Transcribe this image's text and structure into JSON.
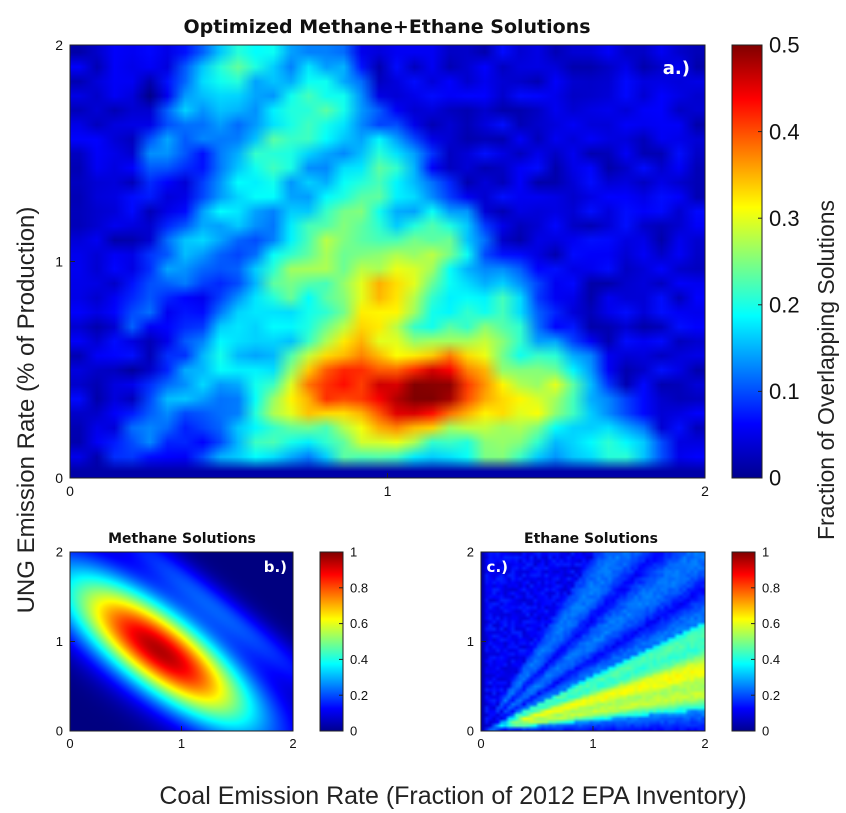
{
  "figure": {
    "shared_ylabel": "UNG Emission Rate (% of Production)",
    "shared_xlabel": "Coal Emission Rate (Fraction of 2012 EPA Inventory)",
    "colorbar_label": "Fraction of Overlapping Solutions",
    "colormap": "jet"
  },
  "chart_data": [
    {
      "type": "heatmap",
      "panel": "a.)",
      "title": "Optimized Methane+Ethane Solutions",
      "xlim": [
        0,
        2
      ],
      "ylim": [
        0,
        2
      ],
      "xticks": [
        "0",
        "1",
        "2"
      ],
      "yticks": [
        "0",
        "1",
        "2"
      ],
      "colorbar": {
        "range": [
          0,
          0.5
        ],
        "ticks": [
          "0",
          "0.1",
          "0.2",
          "0.3",
          "0.4",
          "0.5"
        ]
      },
      "features": {
        "peak_value": 0.45,
        "peak_location": {
          "coal": 1.0,
          "ung": 0.4
        },
        "nonzero_region": "triangle with vertices near (0.1, 0.1), (0.4, 2.0) and (1.9, 0.2)"
      }
    },
    {
      "type": "heatmap",
      "panel": "b.)",
      "title": "Methane Solutions",
      "xlim": [
        0,
        2
      ],
      "ylim": [
        0,
        2
      ],
      "xticks": [
        "0",
        "1",
        "2"
      ],
      "yticks": [
        "0",
        "1",
        "2"
      ],
      "colorbar": {
        "range": [
          0,
          1
        ],
        "ticks": [
          "0",
          "0.2",
          "0.4",
          "0.6",
          "0.8",
          "1"
        ]
      },
      "features": {
        "peak_value": 0.95,
        "peak_location": {
          "coal": 0.8,
          "ung": 0.9
        },
        "shape": "elliptical band oriented along the anti-diagonal"
      }
    },
    {
      "type": "heatmap",
      "panel": "c.)",
      "title": "Ethane Solutions",
      "xlim": [
        0,
        2
      ],
      "ylim": [
        0,
        2
      ],
      "xticks": [
        "0",
        "1",
        "2"
      ],
      "yticks": [
        "0",
        "1",
        "2"
      ],
      "colorbar": {
        "range": [
          0,
          1
        ],
        "ticks": [
          "0",
          "0.2",
          "0.4",
          "0.6",
          "0.8",
          "1"
        ]
      },
      "features": {
        "peak_value": 0.65,
        "peak_location": {
          "coal": 1.8,
          "ung": 0.5
        },
        "shape": "fan of rays radiating from the origin, strongest in the lower-right wedge"
      }
    }
  ]
}
